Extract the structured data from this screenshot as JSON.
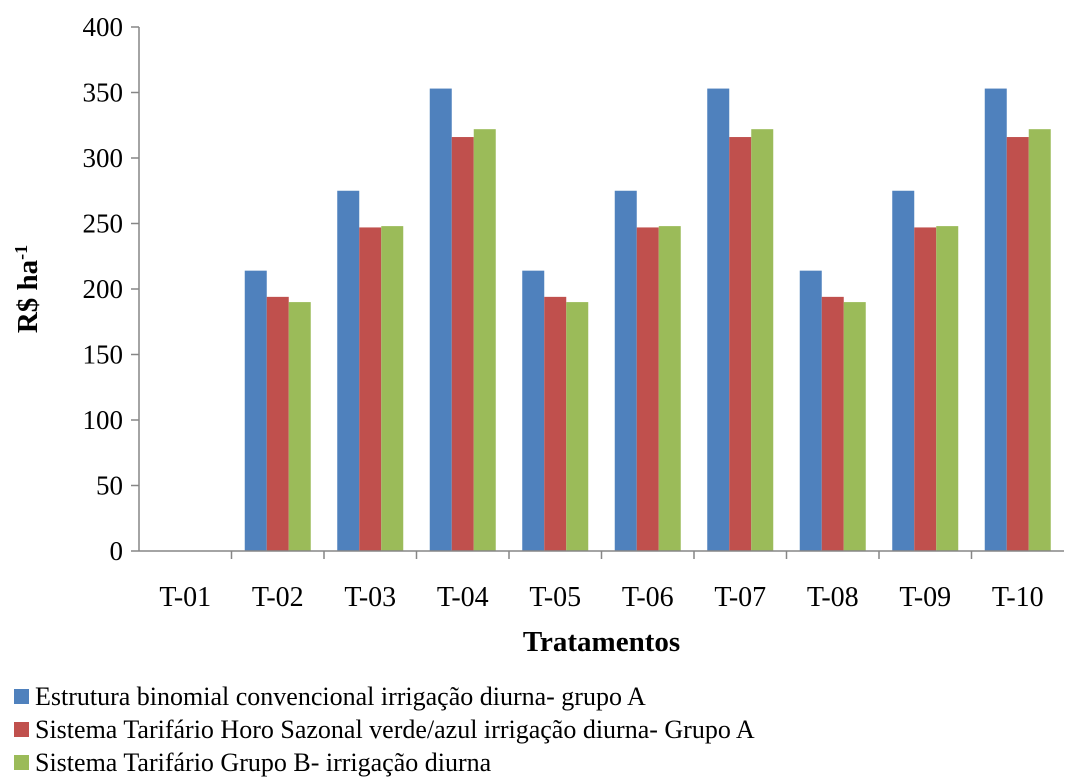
{
  "chart_data": {
    "type": "bar",
    "title": "",
    "xlabel": "Tratamentos",
    "ylabel": "R$ ha-1",
    "ylabel_main": "R$ ha",
    "ylabel_sup": "-1",
    "ylim": [
      0,
      400
    ],
    "yticks": [
      0,
      50,
      100,
      150,
      200,
      250,
      300,
      350,
      400
    ],
    "categories": [
      "T-01",
      "T-02",
      "T-03",
      "T-04",
      "T-05",
      "T-06",
      "T-07",
      "T-08",
      "T-09",
      "T-10"
    ],
    "grid": false,
    "legend_position": "bottom",
    "series": [
      {
        "name": "Estrutura binomial convencional irrigação diurna- grupo A",
        "color": "#4f81bd",
        "values": [
          0,
          214,
          275,
          353,
          214,
          275,
          353,
          214,
          275,
          353
        ]
      },
      {
        "name": "Sistema Tarifário Horo Sazonal verde/azul irrigação diurna- Grupo A",
        "color": "#c0504d",
        "values": [
          0,
          194,
          247,
          316,
          194,
          247,
          316,
          194,
          247,
          316
        ]
      },
      {
        "name": "Sistema Tarifário Grupo B- irrigação diurna",
        "color": "#9bbb59",
        "values": [
          0,
          190,
          248,
          322,
          190,
          248,
          322,
          190,
          248,
          322
        ]
      }
    ]
  }
}
